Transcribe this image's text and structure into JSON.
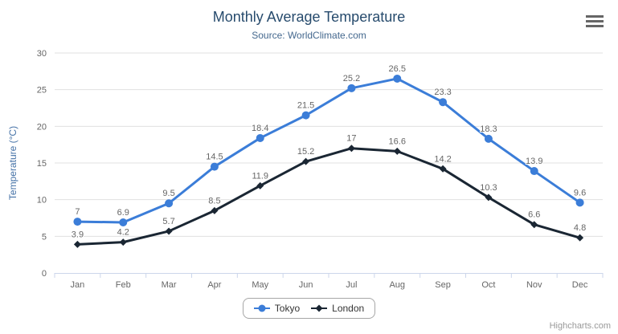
{
  "credits": "Highcharts.com",
  "chart_data": {
    "type": "line",
    "title": "Monthly Average Temperature",
    "subtitle": "Source: WorldClimate.com",
    "xlabel": "",
    "ylabel": "Temperature (°C)",
    "categories": [
      "Jan",
      "Feb",
      "Mar",
      "Apr",
      "May",
      "Jun",
      "Jul",
      "Aug",
      "Sep",
      "Oct",
      "Nov",
      "Dec"
    ],
    "series": [
      {
        "name": "Tokyo",
        "marker": "circle",
        "color": "#3b7dd8",
        "values": [
          7,
          6.9,
          9.5,
          14.5,
          18.4,
          21.5,
          25.2,
          26.5,
          23.3,
          18.3,
          13.9,
          9.6
        ]
      },
      {
        "name": "London",
        "marker": "diamond",
        "color": "#1a2633",
        "values": [
          3.9,
          4.2,
          5.7,
          8.5,
          11.9,
          15.2,
          17,
          16.6,
          14.2,
          10.3,
          6.6,
          4.8
        ]
      }
    ],
    "ylim": [
      0,
      30
    ],
    "yticks": [
      0,
      5,
      10,
      15,
      20,
      25,
      30
    ],
    "grid": true,
    "data_labels": true,
    "legend_position": "bottom-center"
  },
  "colors": {
    "title": "#274b6d",
    "subtitle": "#44688e",
    "y_axis_title": "#4572a7",
    "axis_label": "#666666",
    "axis_line": "#ccd6eb",
    "gridline": "#e0e0e0",
    "data_label": "#666666",
    "legend_text": "#333333",
    "legend_border": "#a6a6a6",
    "credits": "#999999",
    "menu_icon": "#666666"
  }
}
